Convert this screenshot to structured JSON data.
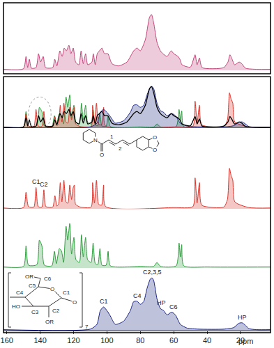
{
  "chart_data": {
    "type": "line",
    "x_label": "ppm",
    "xlim": [
      162,
      2
    ],
    "xticks": [
      160,
      140,
      120,
      100,
      80,
      60,
      40,
      20
    ],
    "tick_labels": "x",
    "panels": [
      {
        "ylim": [
          0,
          1.15
        ],
        "series": [
          {
            "type": "area",
            "color": "#c0457a",
            "x": [
              162,
              150,
              148.5,
              147.5,
              146.5,
              145.3,
              142.5,
              141,
              139.8,
              138.2,
              136.8,
              132.5,
              131.3,
              130,
              128.2,
              126.8,
              125.6,
              124.3,
              122.8,
              121.6,
              120.2,
              118.8,
              116.8,
              115.5,
              114.2,
              112.8,
              111.5,
              109,
              108.2,
              107,
              105.8,
              104.5,
              103,
              101.5,
              99.5,
              97,
              93,
              88,
              84,
              82,
              80,
              77,
              74.5,
              73.3,
              72,
              70,
              68,
              66.5,
              64,
              61.5,
              60,
              57.5,
              56.3,
              55,
              50,
              47.2,
              46,
              44.6,
              43,
              30,
              27.5,
              26.3,
              25,
              23.5,
              20.8,
              19.2,
              17,
              10,
              2
            ],
            "values": [
              0.02,
              0.03,
              0.25,
              0.05,
              0.2,
              0.04,
              0.05,
              0.3,
              0.15,
              0.25,
              0.05,
              0.05,
              0.2,
              0.08,
              0.35,
              0.25,
              0.4,
              0.35,
              0.45,
              0.3,
              0.4,
              0.15,
              0.1,
              0.35,
              0.12,
              0.3,
              0.1,
              0.15,
              0.3,
              0.1,
              0.3,
              0.35,
              0.4,
              0.3,
              0.3,
              0.12,
              0.08,
              0.15,
              0.35,
              0.4,
              0.35,
              0.55,
              0.95,
              1.0,
              0.85,
              0.5,
              0.35,
              0.3,
              0.25,
              0.35,
              0.3,
              0.25,
              0.2,
              0.1,
              0.06,
              0.28,
              0.1,
              0.22,
              0.05,
              0.05,
              0.15,
              0.28,
              0.2,
              0.1,
              0.15,
              0.12,
              0.04,
              0.02,
              0.02
            ]
          }
        ],
        "labels": []
      },
      {
        "ylim": [
          0,
          1.15
        ],
        "series": [
          {
            "type": "area",
            "color": "#2e9e3e",
            "x": [
              162,
              150,
              148.5,
              147,
              142,
              140.5,
              139,
              137.5,
              133,
              131.5,
              130.3,
              128.5,
              127.2,
              126,
              124.5,
              123.5,
              122.3,
              121.2,
              119.8,
              118.6,
              116.5,
              115.3,
              114.2,
              112.8,
              111.6,
              109.5,
              108.3,
              107,
              105.5,
              104.2,
              103,
              100.5,
              99.3,
              98,
              80,
              72,
              70,
              68,
              58.5,
              56.8,
              56,
              55.2,
              54,
              40,
              2
            ],
            "values": [
              0.02,
              0.03,
              0.4,
              0.05,
              0.06,
              0.5,
              0.4,
              0.05,
              0.04,
              0.3,
              0.08,
              0.35,
              0.3,
              0.1,
              0.75,
              0.5,
              0.8,
              0.25,
              0.55,
              0.15,
              0.1,
              0.6,
              0.2,
              0.55,
              0.15,
              0.1,
              0.45,
              0.08,
              0.06,
              0.35,
              0.05,
              0.05,
              0.3,
              0.04,
              0.03,
              0.03,
              0.1,
              0.03,
              0.04,
              0.45,
              0.2,
              0.42,
              0.04,
              0.02,
              0.02
            ]
          },
          {
            "type": "area",
            "color": "#d9342b",
            "x": [
              162,
              150,
              148.5,
              147,
              143.8,
              142.5,
              141.2,
              139,
              137.8,
              136.6,
              132.5,
              131.2,
              130,
              129,
              128,
              127,
              125.8,
              124.6,
              123.4,
              122.3,
              121.2,
              120.2,
              119.5,
              118.8,
              116,
              109.5,
              108.6,
              107.5,
              106.3,
              105,
              103.2,
              102,
              100.8,
              60,
              48.5,
              47.2,
              46,
              44.6,
              43.2,
              30,
              27.8,
              26.6,
              25.6,
              24.6,
              23.4,
              15,
              2
            ],
            "values": [
              0.02,
              0.03,
              0.35,
              0.05,
              0.04,
              0.45,
              0.05,
              0.04,
              0.4,
              0.05,
              0.04,
              0.28,
              0.06,
              0.1,
              0.55,
              0.15,
              0.6,
              0.15,
              0.12,
              0.5,
              0.2,
              0.45,
              0.5,
              0.1,
              0.04,
              0.04,
              0.55,
              0.12,
              0.6,
              0.1,
              0.08,
              0.5,
              0.05,
              0.03,
              0.05,
              0.65,
              0.12,
              0.55,
              0.08,
              0.04,
              0.2,
              0.85,
              0.7,
              0.6,
              0.15,
              0.03,
              0.02
            ]
          },
          {
            "type": "area",
            "color": "#1a237e",
            "x": [
              162,
              110,
              106,
              104,
              102,
              100,
              98,
              95,
              90,
              86,
              84,
              82,
              80,
              78,
              76,
              74,
              73,
              72,
              70,
              68,
              67,
              66,
              64,
              62,
              61,
              59,
              56,
              52,
              45,
              30,
              24,
              21,
              19,
              17,
              15,
              10,
              2
            ],
            "values": [
              0.02,
              0.03,
              0.12,
              0.38,
              0.45,
              0.38,
              0.28,
              0.12,
              0.18,
              0.38,
              0.55,
              0.56,
              0.5,
              0.55,
              0.8,
              0.98,
              1.0,
              0.95,
              0.6,
              0.42,
              0.4,
              0.38,
              0.3,
              0.34,
              0.35,
              0.3,
              0.12,
              0.05,
              0.03,
              0.03,
              0.06,
              0.14,
              0.15,
              0.1,
              0.04,
              0.02,
              0.02
            ]
          },
          {
            "type": "line",
            "color": "#000000",
            "x": [
              162,
              150,
              148.5,
              147.5,
              146.5,
              145.3,
              142.5,
              141,
              139.8,
              138.2,
              136.8,
              132.5,
              131.3,
              130,
              128.2,
              126.8,
              125.6,
              124.3,
              122.8,
              121.6,
              120.2,
              118.8,
              116.8,
              115.5,
              114.2,
              112.8,
              111.5,
              109,
              108.2,
              107,
              105.8,
              104.5,
              103,
              101.5,
              99.5,
              97,
              93,
              88,
              84,
              82,
              80,
              77,
              74.5,
              73.3,
              72,
              70,
              68,
              66.5,
              64,
              61.5,
              60,
              57.5,
              56.3,
              55,
              50,
              47.2,
              46,
              44.6,
              43,
              30,
              27.5,
              26.3,
              25,
              23.5,
              20.8,
              19.2,
              17,
              10,
              2
            ],
            "values": [
              0.02,
              0.03,
              0.25,
              0.05,
              0.2,
              0.04,
              0.05,
              0.3,
              0.15,
              0.25,
              0.05,
              0.05,
              0.2,
              0.08,
              0.35,
              0.25,
              0.4,
              0.35,
              0.45,
              0.3,
              0.4,
              0.15,
              0.1,
              0.35,
              0.12,
              0.3,
              0.1,
              0.15,
              0.3,
              0.1,
              0.3,
              0.35,
              0.4,
              0.3,
              0.3,
              0.12,
              0.08,
              0.15,
              0.35,
              0.4,
              0.35,
              0.55,
              0.95,
              1.0,
              0.85,
              0.5,
              0.35,
              0.3,
              0.25,
              0.35,
              0.3,
              0.25,
              0.2,
              0.1,
              0.06,
              0.28,
              0.1,
              0.22,
              0.05,
              0.05,
              0.15,
              0.28,
              0.2,
              0.1,
              0.15,
              0.12,
              0.04,
              0.02,
              0.02
            ]
          }
        ],
        "labels": []
      },
      {
        "ylim": [
          0,
          1.6
        ],
        "series": [
          {
            "type": "area",
            "color": "#d9342b",
            "x": [
              162,
              150,
              148.5,
              147,
              143.8,
              142.5,
              141.2,
              139,
              137.8,
              136.6,
              132.5,
              131.2,
              130,
              129,
              128,
              127,
              125.8,
              124.6,
              123.4,
              122.3,
              121.2,
              120.2,
              119.5,
              118.8,
              116,
              109.5,
              108.6,
              107.5,
              106.3,
              105,
              103.2,
              102,
              100.8,
              60,
              48.5,
              47.2,
              46,
              44.6,
              43.2,
              30,
              27.8,
              26.6,
              25.6,
              24.6,
              23.4,
              15,
              2
            ],
            "values": [
              0.02,
              0.03,
              0.35,
              0.05,
              0.04,
              0.45,
              0.05,
              0.04,
              0.4,
              0.05,
              0.04,
              0.28,
              0.06,
              0.1,
              0.55,
              0.15,
              0.6,
              0.15,
              0.12,
              0.5,
              0.2,
              0.45,
              0.5,
              0.1,
              0.04,
              0.04,
              0.55,
              0.12,
              0.6,
              0.1,
              0.08,
              0.5,
              0.05,
              0.03,
              0.05,
              0.65,
              0.12,
              0.55,
              0.08,
              0.04,
              0.2,
              0.85,
              0.7,
              0.6,
              0.15,
              0.03,
              0.02
            ]
          }
        ],
        "labels": [
          {
            "text": "C1",
            "x": 142.5
          },
          {
            "text": "C2",
            "x": 137.8
          }
        ]
      },
      {
        "ylim": [
          0,
          1.0
        ],
        "series": [
          {
            "type": "area",
            "color": "#2e9e3e",
            "x": [
              162,
              150,
              148.5,
              147,
              142,
              140.5,
              139,
              137.5,
              133,
              131.5,
              130.3,
              128.5,
              127.2,
              126,
              124.5,
              123.5,
              122.3,
              121.2,
              119.8,
              118.6,
              116.5,
              115.3,
              114.2,
              112.8,
              111.6,
              109.5,
              108.3,
              107,
              105.5,
              104.2,
              103,
              100.5,
              99.3,
              98,
              80,
              72,
              70,
              68,
              58.5,
              56.8,
              56,
              55.2,
              54,
              40,
              2
            ],
            "values": [
              0.02,
              0.03,
              0.4,
              0.05,
              0.06,
              0.5,
              0.4,
              0.05,
              0.04,
              0.3,
              0.08,
              0.35,
              0.3,
              0.1,
              0.75,
              0.5,
              0.8,
              0.25,
              0.55,
              0.15,
              0.1,
              0.6,
              0.2,
              0.55,
              0.15,
              0.1,
              0.45,
              0.08,
              0.06,
              0.35,
              0.05,
              0.05,
              0.3,
              0.04,
              0.03,
              0.03,
              0.1,
              0.03,
              0.04,
              0.45,
              0.2,
              0.42,
              0.04,
              0.02,
              0.02
            ]
          }
        ],
        "labels": []
      },
      {
        "ylim": [
          0,
          1.15
        ],
        "series": [
          {
            "type": "area",
            "color": "#1a237e",
            "x": [
              162,
              110,
              106,
              104,
              102,
              100,
              98,
              95,
              90,
              86,
              84,
              82,
              80,
              78,
              76,
              74,
              73,
              72,
              70,
              68,
              67,
              66,
              64,
              62,
              61,
              59,
              56,
              52,
              45,
              30,
              24,
              21,
              19,
              17,
              15,
              10,
              2
            ],
            "values": [
              0.02,
              0.03,
              0.12,
              0.38,
              0.45,
              0.38,
              0.28,
              0.12,
              0.18,
              0.38,
              0.55,
              0.56,
              0.5,
              0.55,
              0.8,
              0.98,
              1.0,
              0.95,
              0.6,
              0.42,
              0.4,
              0.38,
              0.3,
              0.34,
              0.35,
              0.3,
              0.12,
              0.05,
              0.03,
              0.03,
              0.06,
              0.14,
              0.15,
              0.1,
              0.04,
              0.02,
              0.02
            ]
          }
        ],
        "labels": [
          {
            "text": "C1",
            "x": 102
          },
          {
            "text": "C4",
            "x": 82
          },
          {
            "text": "C2,3,5",
            "x": 73
          },
          {
            "text": "HP",
            "x": 67.5
          },
          {
            "text": "C6",
            "x": 60
          },
          {
            "text": "HP",
            "x": 19
          }
        ]
      }
    ]
  },
  "structures": {
    "piperine": [
      "N",
      "O",
      "1",
      "2",
      "O",
      "O"
    ],
    "cyclodextrin": [
      "OR",
      "C6",
      "C5",
      "C4",
      "O",
      "HO",
      "C3",
      "C2",
      "OR",
      "C1",
      "O",
      "7"
    ]
  }
}
